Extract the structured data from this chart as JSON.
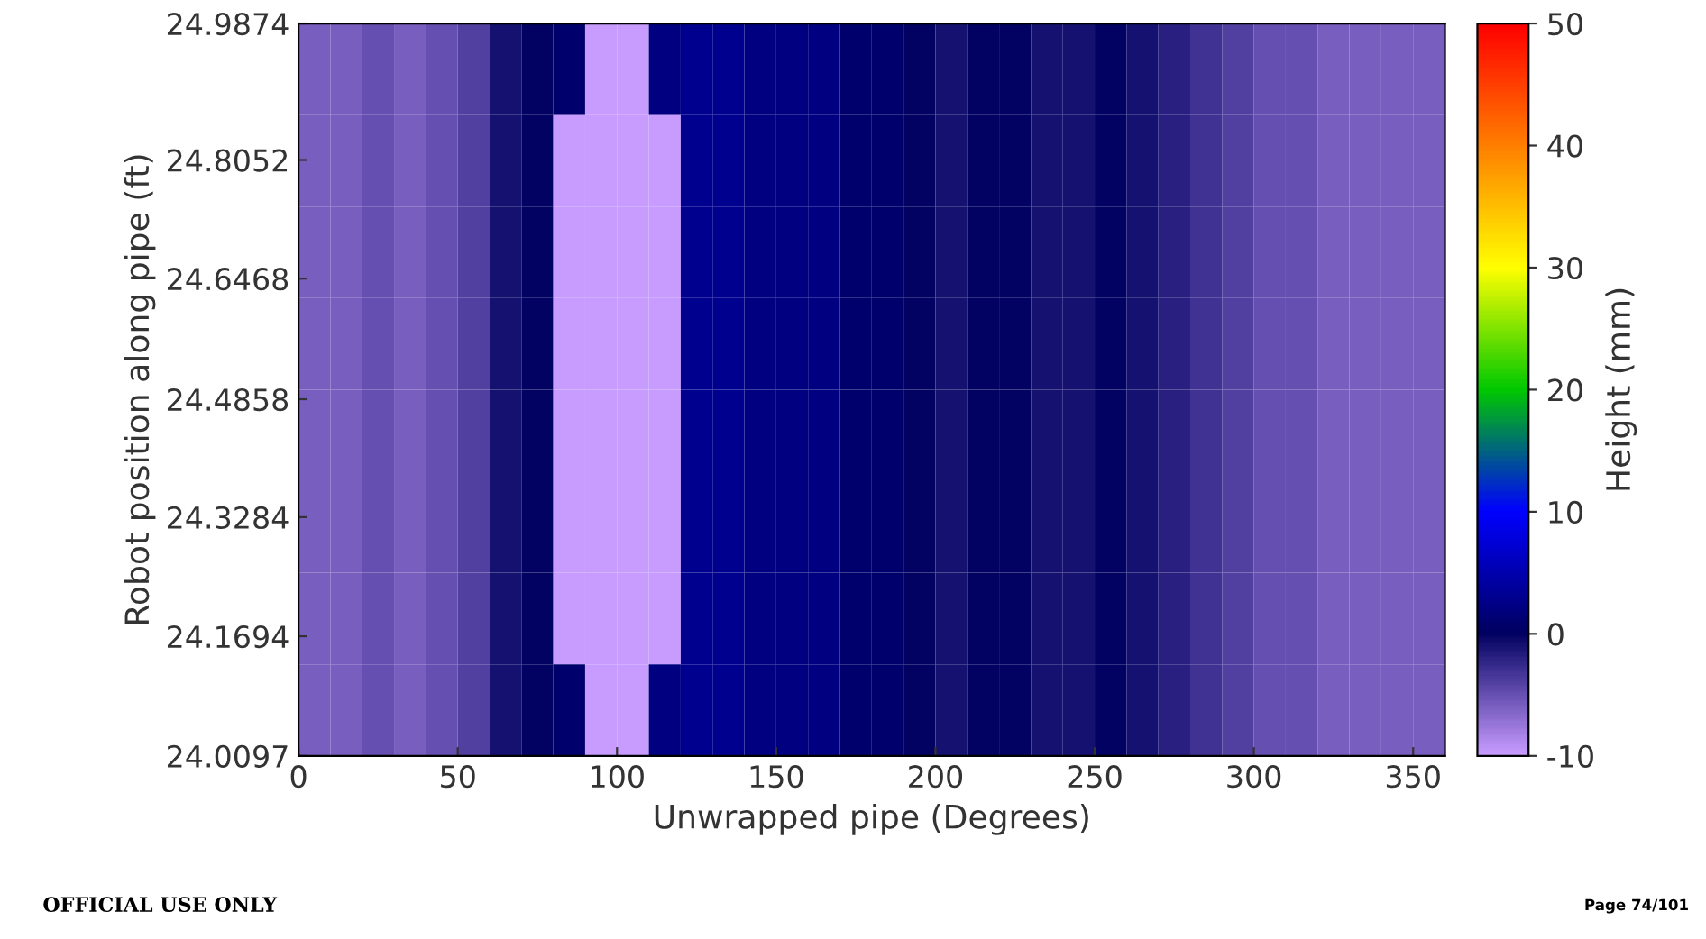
{
  "chart_data": {
    "type": "heatmap",
    "xlabel": "Unwrapped pipe (Degrees)",
    "ylabel": "Robot position along pipe (ft)",
    "clabel": "Height (mm)",
    "annotations": [
      "OFFICIAL USE ONLY",
      "Page 74/101"
    ],
    "xlim": [
      0,
      360
    ],
    "xticks": [
      0,
      50,
      100,
      150,
      200,
      250,
      300,
      350
    ],
    "ylim": [
      24.0097,
      24.9874
    ],
    "yticks": [
      24.0097,
      24.1694,
      24.3284,
      24.4858,
      24.6468,
      24.8052,
      24.9874
    ],
    "clim": [
      -10,
      50
    ],
    "cticks": [
      -10,
      0,
      10,
      20,
      30,
      40,
      50
    ],
    "colors": [
      "#c89cff",
      "#000060",
      "#0000ff",
      "#00c800",
      "#ffff00",
      "#ff8000",
      "#ff0000"
    ],
    "cells": [
      [
        -6,
        -6,
        -5,
        -6,
        -5,
        -4,
        -1,
        0,
        1,
        -10,
        -10,
        2,
        3,
        3,
        2,
        2,
        2,
        1,
        1,
        0,
        -1,
        0,
        0,
        -1,
        -1,
        0,
        -1,
        -2,
        -3,
        -4,
        -5,
        -5,
        -6,
        -6,
        -6,
        -6
      ],
      [
        -6,
        -6,
        -5,
        -6,
        -5,
        -4,
        -1,
        0,
        -10,
        -10,
        -10,
        -10,
        3,
        3,
        2,
        2,
        2,
        1,
        1,
        0,
        -1,
        0,
        0,
        -1,
        -1,
        0,
        -1,
        -2,
        -3,
        -4,
        -5,
        -5,
        -6,
        -6,
        -6,
        -6
      ],
      [
        -6,
        -6,
        -5,
        -6,
        -5,
        -4,
        -1,
        0,
        -10,
        -10,
        -10,
        -10,
        3,
        3,
        2,
        2,
        2,
        1,
        1,
        0,
        -1,
        0,
        0,
        -1,
        -1,
        0,
        -1,
        -2,
        -3,
        -4,
        -5,
        -5,
        -6,
        -6,
        -6,
        -6
      ],
      [
        -6,
        -6,
        -5,
        -6,
        -5,
        -4,
        -1,
        0,
        -10,
        -10,
        -10,
        -10,
        3,
        3,
        2,
        2,
        2,
        1,
        1,
        0,
        -1,
        0,
        0,
        -1,
        -1,
        0,
        -1,
        -2,
        -3,
        -4,
        -5,
        -5,
        -6,
        -6,
        -6,
        -6
      ],
      [
        -6,
        -6,
        -5,
        -6,
        -5,
        -4,
        -1,
        0,
        -10,
        -10,
        -10,
        -10,
        3,
        3,
        2,
        2,
        2,
        1,
        1,
        0,
        -1,
        0,
        0,
        -1,
        -1,
        0,
        -1,
        -2,
        -3,
        -4,
        -5,
        -5,
        -6,
        -6,
        -6,
        -6
      ],
      [
        -6,
        -6,
        -5,
        -6,
        -5,
        -4,
        -1,
        0,
        -10,
        -10,
        -10,
        -10,
        3,
        3,
        2,
        2,
        2,
        1,
        1,
        0,
        -1,
        0,
        0,
        -1,
        -1,
        0,
        -1,
        -2,
        -3,
        -4,
        -5,
        -5,
        -6,
        -6,
        -6,
        -6
      ],
      [
        -6,
        -6,
        -5,
        -6,
        -5,
        -4,
        -1,
        0,
        -10,
        -10,
        -10,
        -10,
        3,
        3,
        2,
        2,
        2,
        1,
        1,
        0,
        -1,
        0,
        0,
        -1,
        -1,
        0,
        -1,
        -2,
        -3,
        -4,
        -5,
        -5,
        -6,
        -6,
        -6,
        -6
      ],
      [
        -6,
        -6,
        -5,
        -6,
        -5,
        -4,
        -1,
        0,
        1,
        -10,
        -10,
        2,
        3,
        3,
        2,
        2,
        2,
        1,
        1,
        0,
        -1,
        0,
        0,
        -1,
        -1,
        0,
        -1,
        -2,
        -3,
        -4,
        -5,
        -5,
        -6,
        -6,
        -6,
        -6
      ]
    ]
  }
}
